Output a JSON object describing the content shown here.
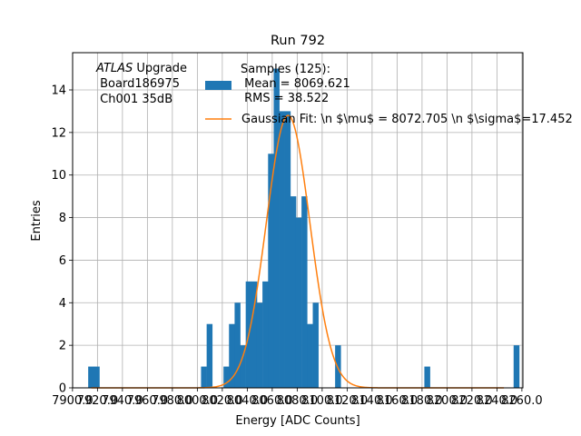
{
  "chart_data": {
    "type": "bar",
    "title": "Run 792",
    "xlabel": "Energy [ADC Counts]",
    "ylabel": "Entries",
    "xlim": [
      7900.1,
      8260.8
    ],
    "ylim": [
      0,
      15.75
    ],
    "grid": true,
    "bin_width": 4.47,
    "bin_color": "#1f77b4",
    "fit_color": "#ff7f0e",
    "x_ticks": [
      7900,
      7920,
      7940,
      7960,
      7980,
      8000,
      8020,
      8040,
      8060,
      8080,
      8100,
      8120,
      8140,
      8160,
      8180,
      8200,
      8220,
      8240,
      8260
    ],
    "x_tick_text": [
      "7900.0",
      "7920.0",
      "7940.0",
      "7960.0",
      "7980.0",
      "8000.0",
      "8020.0",
      "8040.0",
      "8060.0",
      "8080.0",
      "8100.0",
      "8120.0",
      "8140.0",
      "8160.0",
      "8180.0",
      "8200.0",
      "8220.0",
      "8240.0",
      "8260.0"
    ],
    "y_ticks": [
      0,
      2,
      4,
      6,
      8,
      10,
      12,
      14
    ],
    "bins": [
      {
        "x": 7914.8,
        "y": 1
      },
      {
        "x": 7919.3,
        "y": 1
      },
      {
        "x": 8005.2,
        "y": 1
      },
      {
        "x": 8009.7,
        "y": 3
      },
      {
        "x": 8023.2,
        "y": 1
      },
      {
        "x": 8027.6,
        "y": 3
      },
      {
        "x": 8032.1,
        "y": 4
      },
      {
        "x": 8036.5,
        "y": 2
      },
      {
        "x": 8041.0,
        "y": 5
      },
      {
        "x": 8045.5,
        "y": 5
      },
      {
        "x": 8049.9,
        "y": 4
      },
      {
        "x": 8054.4,
        "y": 5
      },
      {
        "x": 8058.9,
        "y": 11
      },
      {
        "x": 8063.4,
        "y": 15
      },
      {
        "x": 8067.8,
        "y": 13
      },
      {
        "x": 8072.3,
        "y": 13
      },
      {
        "x": 8076.8,
        "y": 9
      },
      {
        "x": 8081.2,
        "y": 8
      },
      {
        "x": 8085.7,
        "y": 9
      },
      {
        "x": 8090.2,
        "y": 3
      },
      {
        "x": 8094.7,
        "y": 4
      },
      {
        "x": 8112.6,
        "y": 2
      },
      {
        "x": 8184.1,
        "y": 1
      },
      {
        "x": 8255.6,
        "y": 2
      }
    ],
    "fit": {
      "mu": 8072.705,
      "sigma": 17.452,
      "amplitude": 12.8
    },
    "legend": {
      "placement": "top-center",
      "hist_label": "Samples (125):\n Mean = 8069.621\n RMS = 38.522",
      "fit_label": "Gaussian Fit: \\n $\\mu$ = 8072.705 \\n $\\sigma$=17.452"
    },
    "annotation": {
      "line1_italic": "ATLAS",
      "line1_rest": " Upgrade",
      "line2": " Board186975",
      "line3": " Ch001 35dB"
    }
  }
}
